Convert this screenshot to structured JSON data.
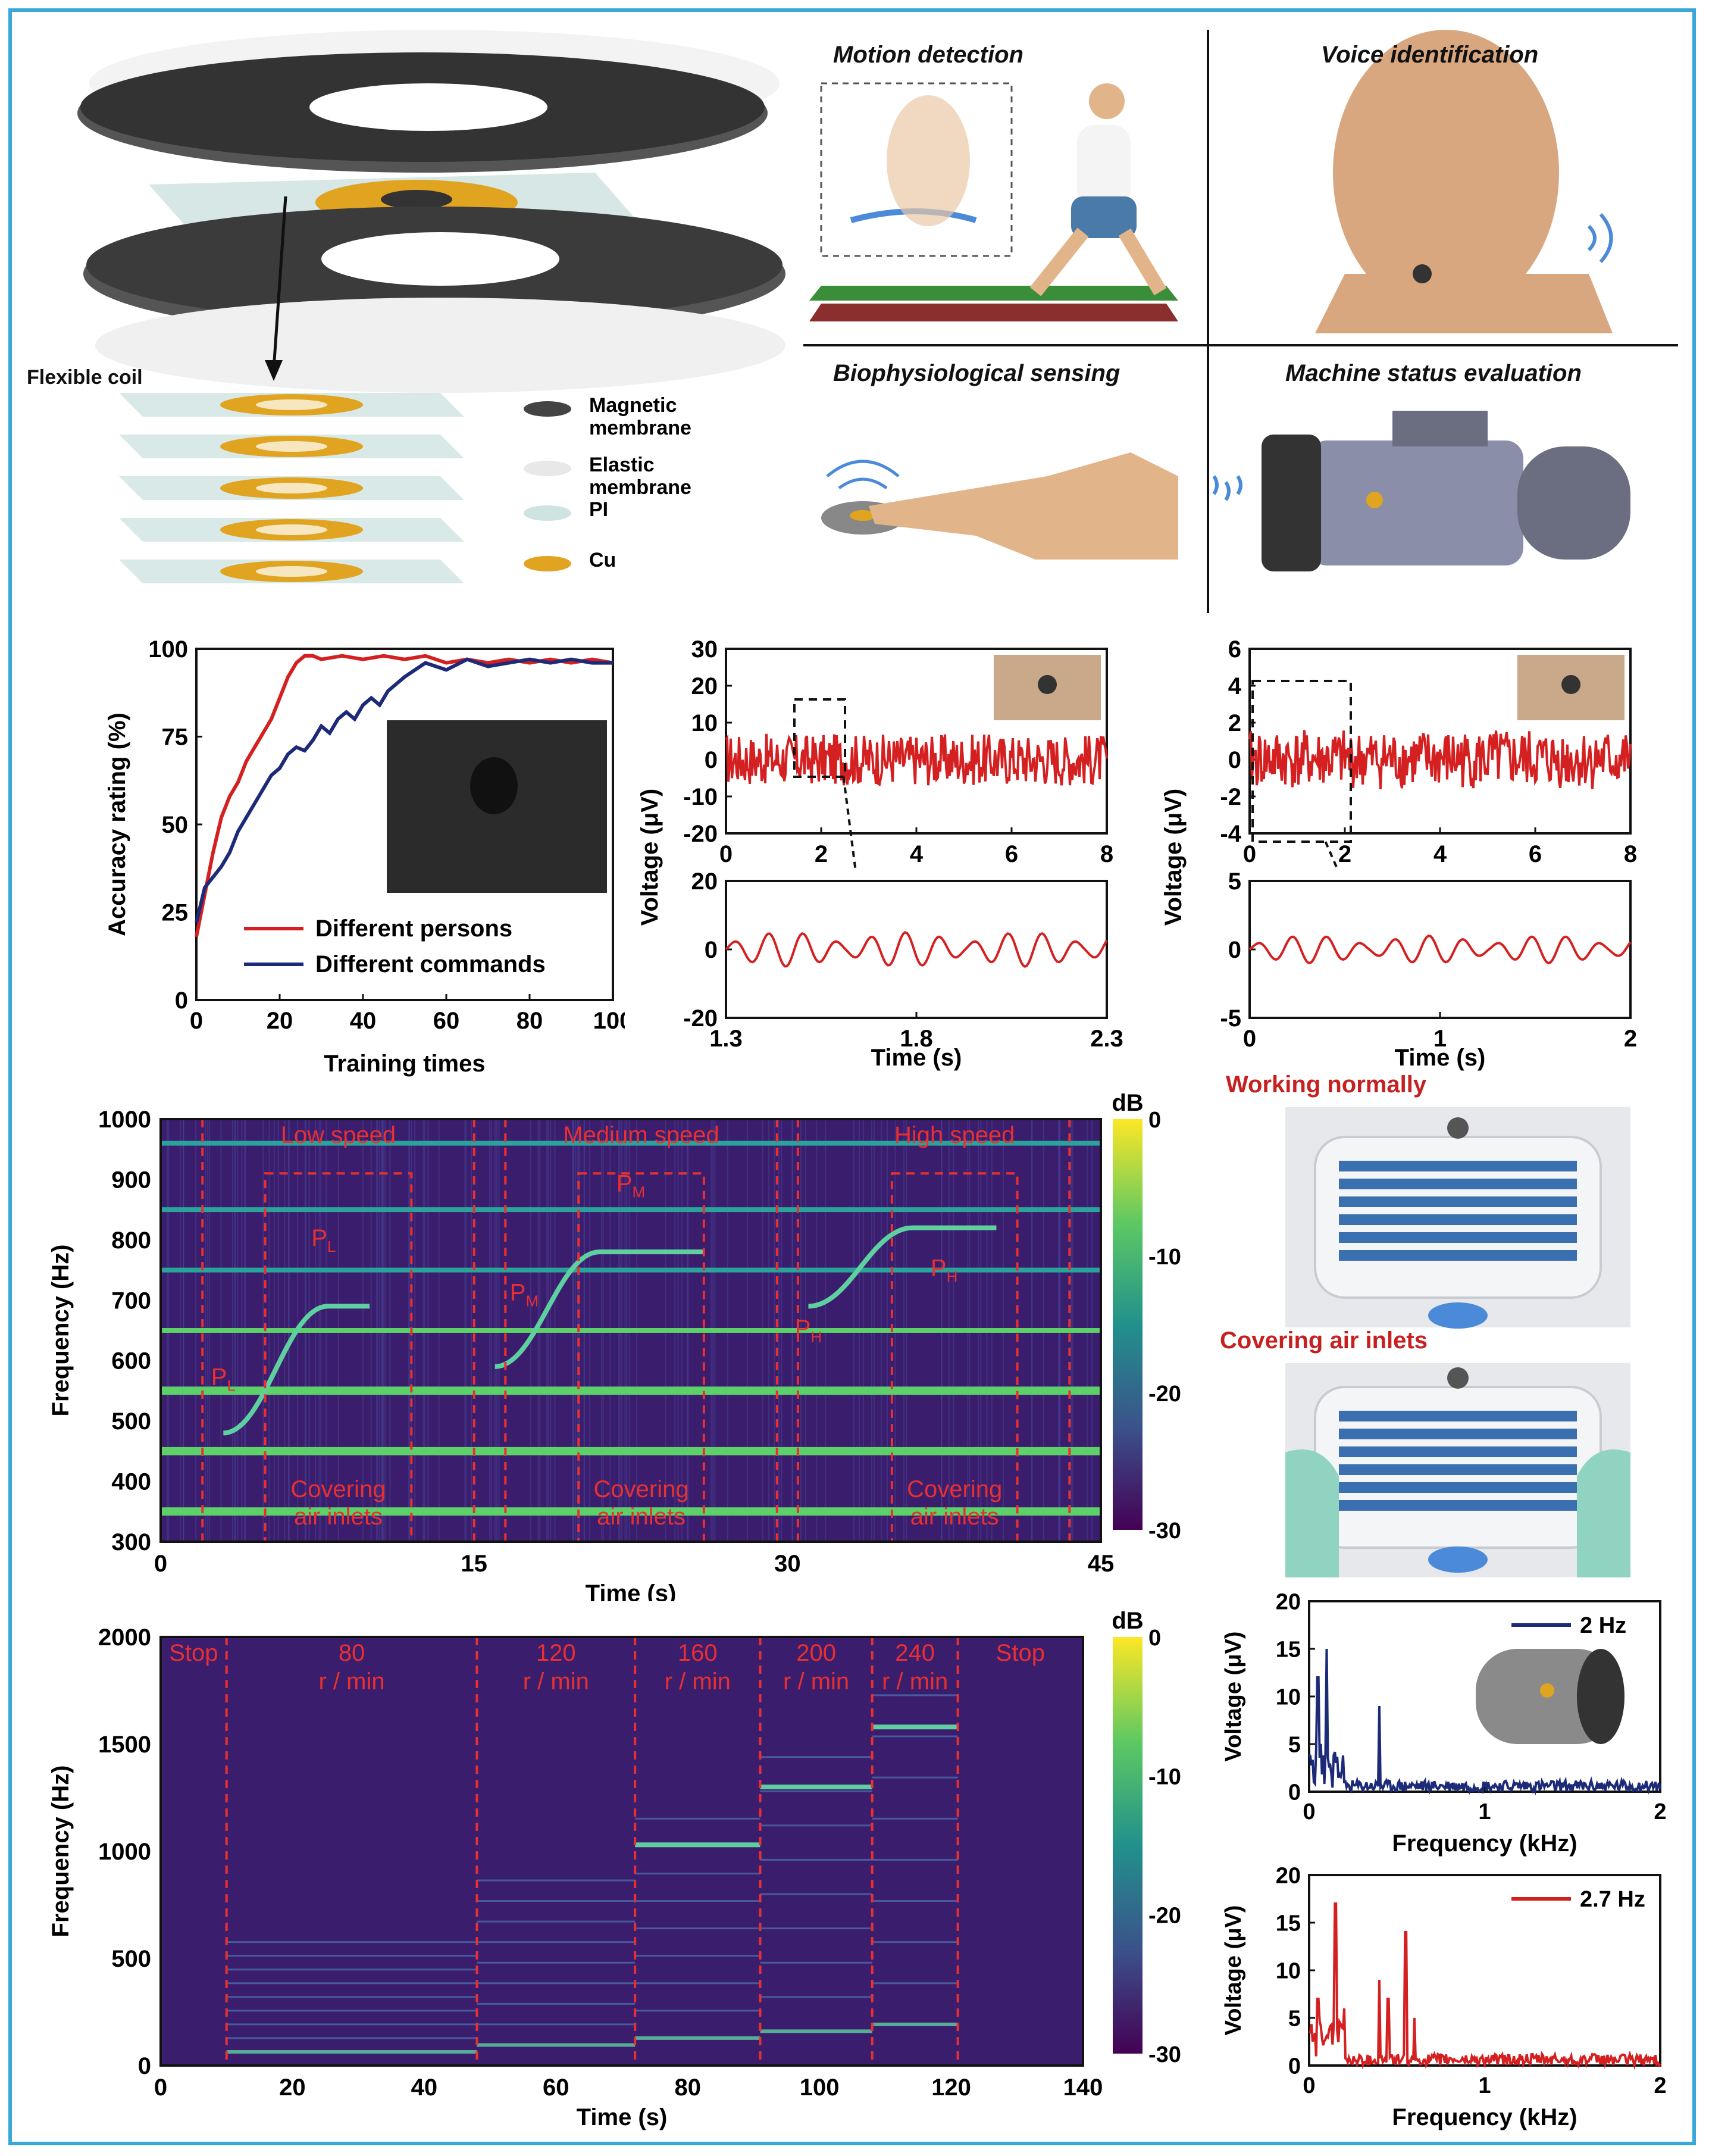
{
  "figure": {
    "flexible_coil_label": "Flexible coil",
    "legend": [
      {
        "label": "Magnetic\nmembrane",
        "color": "#444444"
      },
      {
        "label": "Elastic\nmembrane",
        "color": "#e8e8e8"
      },
      {
        "label": "PI",
        "color": "#cfe3e2"
      },
      {
        "label": "Cu",
        "color": "#e0a420"
      }
    ],
    "applications": [
      {
        "title": "Motion detection",
        "icon": "runner-illustration"
      },
      {
        "title": "Voice identification",
        "icon": "head-illustration"
      },
      {
        "title": "Biophysiological sensing",
        "icon": "finger-illustration"
      },
      {
        "title": "Machine status evaluation",
        "icon": "motor-illustration"
      }
    ],
    "fan_panel": {
      "working_normally": "Working normally",
      "covering_air_inlets": "Covering air inlets"
    }
  },
  "chart_data": [
    {
      "type": "line",
      "title": "",
      "xlabel": "Training times",
      "ylabel": "Accuracy rating (%)",
      "xlim": [
        0,
        100
      ],
      "ylim": [
        0,
        100
      ],
      "xticks": [
        "0",
        "20",
        "40",
        "60",
        "80",
        "100"
      ],
      "yticks": [
        "0",
        "25",
        "50",
        "75",
        "100"
      ],
      "series": [
        {
          "name": "Different persons",
          "color": "#d42020",
          "x": [
            0,
            2,
            4,
            6,
            8,
            10,
            12,
            14,
            16,
            18,
            20,
            22,
            24,
            26,
            28,
            30,
            35,
            40,
            45,
            50,
            55,
            60,
            65,
            70,
            75,
            80,
            85,
            90,
            95,
            100
          ],
          "y": [
            18,
            30,
            42,
            52,
            58,
            62,
            68,
            72,
            76,
            80,
            86,
            92,
            96,
            98,
            98,
            97,
            98,
            97,
            98,
            97,
            98,
            96,
            97,
            96,
            97,
            96,
            97,
            96,
            97,
            96
          ]
        },
        {
          "name": "Different commands",
          "color": "#1c2a78",
          "x": [
            0,
            2,
            4,
            6,
            8,
            10,
            12,
            14,
            16,
            18,
            20,
            22,
            24,
            26,
            28,
            30,
            32,
            34,
            36,
            38,
            40,
            42,
            44,
            46,
            48,
            50,
            55,
            60,
            65,
            70,
            75,
            80,
            85,
            90,
            95,
            100
          ],
          "y": [
            22,
            32,
            35,
            38,
            42,
            48,
            52,
            56,
            60,
            64,
            66,
            70,
            72,
            71,
            74,
            78,
            76,
            80,
            82,
            80,
            84,
            86,
            84,
            88,
            90,
            92,
            96,
            94,
            97,
            95,
            96,
            97,
            96,
            97,
            96,
            96
          ]
        }
      ]
    },
    {
      "type": "line",
      "xlabel": "Time (s)",
      "ylabel": "Voltage (μV)",
      "top": {
        "xlim": [
          0,
          8
        ],
        "ylim": [
          -20,
          30
        ],
        "xticks": [
          "0",
          "2",
          "4",
          "6",
          "8"
        ],
        "yticks": [
          "30",
          "20",
          "10",
          "0",
          "-10",
          "-20"
        ]
      },
      "bottom": {
        "xlim": [
          1.3,
          2.3
        ],
        "ylim": [
          -20,
          20
        ],
        "xticks": [
          "1.3",
          "1.8",
          "2.3"
        ],
        "yticks": [
          "20",
          "0",
          "-20"
        ]
      },
      "noise_amplitude_top": 7,
      "noise_amplitude_bottom": 5,
      "series": [
        {
          "name": "voltage",
          "color": "#d42020"
        }
      ]
    },
    {
      "type": "line",
      "xlabel": "Time (s)",
      "ylabel": "Voltage (μV)",
      "top": {
        "xlim": [
          0,
          8
        ],
        "ylim": [
          -4,
          6
        ],
        "xticks": [
          "0",
          "2",
          "4",
          "6",
          "8"
        ],
        "yticks": [
          "6",
          "4",
          "2",
          "0",
          "-2",
          "-4"
        ]
      },
      "bottom": {
        "xlim": [
          0,
          2
        ],
        "ylim": [
          -5,
          5
        ],
        "xticks": [
          "0",
          "1",
          "2"
        ],
        "yticks": [
          "5",
          "0",
          "-5"
        ]
      },
      "noise_amplitude_top": 1.6,
      "noise_amplitude_bottom": 1,
      "series": [
        {
          "name": "voltage",
          "color": "#d42020"
        }
      ]
    },
    {
      "type": "heatmap",
      "xlabel": "Time (s)",
      "ylabel": "Frequency (Hz)",
      "xlim": [
        0,
        45
      ],
      "ylim": [
        300,
        1000
      ],
      "xticks": [
        "0",
        "15",
        "30",
        "45"
      ],
      "yticks": [
        "300",
        "400",
        "500",
        "600",
        "700",
        "800",
        "900",
        "1000"
      ],
      "colorbar": {
        "label": "dB",
        "ticks": [
          "0",
          "-10",
          "-20",
          "-30"
        ]
      },
      "sections": [
        "Low speed",
        "Medium speed",
        "High speed"
      ],
      "covering_labels": [
        "Covering\nair inlets",
        "Covering\nair inlets",
        "Covering\nair inlets"
      ],
      "peaks": [
        "PL",
        "PL",
        "PM",
        "PM",
        "PH",
        "PH"
      ],
      "bands": [
        350,
        450,
        550,
        650,
        750,
        850,
        960
      ]
    },
    {
      "type": "heatmap",
      "xlabel": "Time (s)",
      "ylabel": "Frequency (Hz)",
      "xlim": [
        0,
        140
      ],
      "ylim": [
        0,
        2000
      ],
      "xticks": [
        "0",
        "20",
        "40",
        "60",
        "80",
        "100",
        "120",
        "140"
      ],
      "yticks": [
        "0",
        "500",
        "1000",
        "1500",
        "2000"
      ],
      "colorbar": {
        "label": "dB",
        "ticks": [
          "0",
          "-10",
          "-20",
          "-30"
        ]
      },
      "segments": [
        "Stop",
        "80\nr / min",
        "120\nr / min",
        "160\nr / min",
        "200\nr / min",
        "240\nr / min",
        "Stop"
      ],
      "segment_bounds": [
        0,
        10,
        48,
        72,
        91,
        108,
        121,
        140
      ]
    },
    {
      "type": "bar",
      "xlabel": "Frequency (kHz)",
      "ylabel": "Voltage (μV)",
      "xlim": [
        0,
        2
      ],
      "ylim": [
        0,
        20
      ],
      "xticks": [
        "0",
        "1",
        "2"
      ],
      "yticks": [
        "0",
        "5",
        "10",
        "15",
        "20"
      ],
      "series": [
        {
          "name": "2 Hz",
          "color": "#1c2a78"
        }
      ],
      "peaks_khz": [
        0.05,
        0.1,
        0.4
      ],
      "peak_values": [
        12,
        15,
        9
      ]
    },
    {
      "type": "bar",
      "xlabel": "Frequency (kHz)",
      "ylabel": "Voltage (μV)",
      "xlim": [
        0,
        2
      ],
      "ylim": [
        0,
        20
      ],
      "xticks": [
        "0",
        "1",
        "2"
      ],
      "yticks": [
        "0",
        "5",
        "10",
        "15",
        "20"
      ],
      "series": [
        {
          "name": "2.7 Hz",
          "color": "#d42020"
        }
      ],
      "peaks_khz": [
        0.05,
        0.15,
        0.2,
        0.4,
        0.45,
        0.55,
        0.6
      ],
      "peak_values": [
        7,
        17,
        6,
        9,
        7,
        14,
        5
      ]
    }
  ]
}
